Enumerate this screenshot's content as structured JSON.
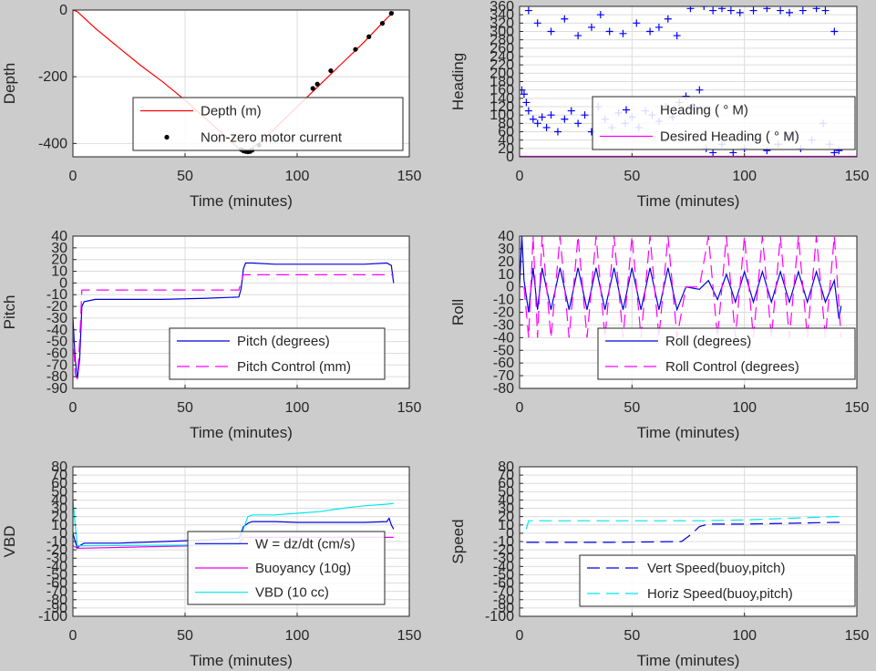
{
  "chart_data": [
    {
      "type": "line",
      "ylabel": "Depth",
      "xlabel": "Time (minutes)",
      "xlim": [
        0,
        150
      ],
      "ylim": [
        -440,
        0
      ],
      "xticks": [
        0,
        50,
        100,
        150
      ],
      "yticks": [
        0,
        -200,
        -400
      ],
      "series": [
        {
          "name": "Depth (m)",
          "color": "#ff0000",
          "style": "solid",
          "x": [
            0,
            2,
            10,
            20,
            30,
            40,
            50,
            60,
            70,
            74,
            78,
            80,
            85,
            90,
            100,
            110,
            120,
            130,
            140,
            143
          ],
          "y": [
            0,
            -5,
            -55,
            -110,
            -165,
            -215,
            -270,
            -330,
            -390,
            -415,
            -420,
            -412,
            -390,
            -355,
            -290,
            -225,
            -160,
            -95,
            -25,
            -5
          ]
        },
        {
          "name": "Non-zero motor current",
          "color": "#000000",
          "style": "dots",
          "x": [
            75,
            76,
            77,
            78,
            79,
            80,
            83,
            107,
            109,
            115,
            126,
            132,
            138,
            142
          ],
          "y": [
            -418,
            -422,
            -424,
            -425,
            -424,
            -420,
            -405,
            -235,
            -222,
            -182,
            -118,
            -80,
            -40,
            -10
          ]
        }
      ],
      "legend_location": "lower-right"
    },
    {
      "type": "scatter",
      "ylabel": "Heading",
      "xlabel": "Time (minutes)",
      "xlim": [
        0,
        150
      ],
      "ylim": [
        0,
        360
      ],
      "xticks": [
        0,
        50,
        100,
        150
      ],
      "yticks": [
        0,
        20,
        40,
        60,
        80,
        100,
        120,
        140,
        160,
        180,
        200,
        220,
        240,
        260,
        280,
        300,
        320,
        340,
        360
      ],
      "series": [
        {
          "name": "Heading (  ° M)",
          "color": "#0000ff",
          "style": "plus",
          "x": [
            1,
            2,
            3,
            4,
            6,
            8,
            10,
            12,
            14,
            17,
            20,
            23,
            26,
            29,
            32,
            35,
            38,
            41,
            44,
            47,
            50,
            53,
            56,
            59,
            62,
            65,
            68,
            71,
            74,
            77,
            80,
            83,
            86,
            90,
            95,
            100,
            105,
            110,
            115,
            120,
            125,
            130,
            135,
            138,
            140,
            142,
            4,
            8,
            14,
            20,
            26,
            32,
            36,
            40,
            46,
            52,
            58,
            62,
            66,
            70,
            76,
            82,
            86,
            90,
            94,
            98,
            104,
            110,
            116,
            120,
            126,
            132,
            136,
            140
          ],
          "y": [
            160,
            150,
            130,
            110,
            90,
            80,
            95,
            70,
            100,
            60,
            90,
            110,
            80,
            100,
            60,
            120,
            90,
            70,
            105,
            80,
            95,
            70,
            110,
            100,
            85,
            120,
            95,
            130,
            145,
            120,
            160,
            20,
            10,
            30,
            10,
            20,
            40,
            15,
            30,
            50,
            20,
            40,
            80,
            30,
            10,
            15,
            350,
            320,
            300,
            330,
            290,
            310,
            340,
            300,
            295,
            320,
            300,
            310,
            330,
            290,
            355,
            360,
            350,
            355,
            350,
            345,
            350,
            355,
            350,
            345,
            350,
            355,
            350,
            300
          ]
        },
        {
          "name": "Desired Heading (  ° M)",
          "color": "#ff00ff",
          "style": "solid",
          "x": [
            0,
            150
          ],
          "y": [
            1,
            1
          ]
        }
      ],
      "legend_location": "lower-right"
    },
    {
      "type": "line",
      "ylabel": "Pitch",
      "xlabel": "Time (minutes)",
      "xlim": [
        0,
        150
      ],
      "ylim": [
        -90,
        40
      ],
      "xticks": [
        0,
        50,
        100,
        150
      ],
      "yticks": [
        -90,
        -80,
        -70,
        -60,
        -50,
        -40,
        -30,
        -20,
        -10,
        0,
        10,
        20,
        30,
        40
      ],
      "series": [
        {
          "name": "Pitch (degrees)",
          "color": "#0000dd",
          "style": "solid",
          "x": [
            0,
            1,
            2,
            3,
            4,
            5,
            10,
            20,
            40,
            60,
            74,
            75,
            76,
            77,
            80,
            90,
            100,
            110,
            120,
            130,
            140,
            142,
            143
          ],
          "y": [
            -30,
            -65,
            -82,
            -65,
            -20,
            -16,
            -14,
            -14,
            -14,
            -13,
            -12,
            -5,
            12,
            17,
            17,
            16,
            16,
            16,
            16,
            16,
            17,
            15,
            0
          ]
        },
        {
          "name": "Pitch Control (mm)",
          "color": "#ff00ff",
          "style": "dashed",
          "x": [
            0,
            1,
            2,
            3,
            4,
            74,
            76,
            80,
            143
          ],
          "y": [
            -40,
            -78,
            -82,
            -50,
            -6,
            -6,
            7,
            7,
            7
          ]
        }
      ],
      "legend_location": "lower-right"
    },
    {
      "type": "line",
      "ylabel": "Roll",
      "xlabel": "Time (minutes)",
      "xlim": [
        0,
        150
      ],
      "ylim": [
        -80,
        40
      ],
      "xticks": [
        0,
        50,
        100,
        150
      ],
      "yticks": [
        -80,
        -70,
        -60,
        -50,
        -40,
        -30,
        -20,
        -10,
        0,
        10,
        20,
        30,
        40
      ],
      "series": [
        {
          "name": "Roll (degrees)",
          "color": "#0000dd",
          "style": "solid",
          "x": [
            0,
            1,
            2,
            4,
            6,
            8,
            10,
            14,
            18,
            22,
            26,
            30,
            34,
            38,
            42,
            46,
            50,
            54,
            58,
            62,
            66,
            70,
            74,
            80,
            84,
            88,
            92,
            96,
            100,
            104,
            108,
            112,
            116,
            120,
            124,
            128,
            132,
            136,
            140,
            142,
            143
          ],
          "y": [
            0,
            40,
            5,
            -20,
            15,
            -18,
            15,
            -18,
            15,
            -18,
            15,
            -18,
            15,
            -18,
            15,
            -18,
            15,
            -18,
            15,
            -18,
            15,
            -18,
            0,
            -2,
            5,
            -10,
            10,
            -12,
            12,
            -12,
            12,
            -12,
            12,
            -12,
            12,
            -12,
            12,
            -12,
            5,
            -25,
            -15
          ]
        },
        {
          "name": "Roll Control (degrees)",
          "color": "#ff00ff",
          "style": "dashed",
          "x": [
            2,
            4,
            6,
            8,
            10,
            14,
            18,
            22,
            26,
            30,
            34,
            38,
            42,
            46,
            50,
            54,
            58,
            62,
            66,
            70,
            74,
            80,
            84,
            88,
            92,
            96,
            100,
            104,
            108,
            112,
            116,
            120,
            124,
            128,
            132,
            136,
            140,
            143
          ],
          "y": [
            0,
            -40,
            40,
            -40,
            40,
            -40,
            40,
            -40,
            40,
            -40,
            40,
            -40,
            40,
            -40,
            40,
            -40,
            40,
            -40,
            40,
            -40,
            0,
            0,
            40,
            -40,
            40,
            -40,
            40,
            -40,
            40,
            -40,
            40,
            -40,
            40,
            -40,
            40,
            -40,
            40,
            -40
          ]
        }
      ],
      "legend_location": "lower-right"
    },
    {
      "type": "line",
      "ylabel": "VBD",
      "xlabel": "Time (minutes)",
      "xlim": [
        0,
        150
      ],
      "ylim": [
        -100,
        80
      ],
      "xticks": [
        0,
        50,
        100,
        150
      ],
      "yticks": [
        -100,
        -90,
        -80,
        -70,
        -60,
        -50,
        -40,
        -30,
        -20,
        -10,
        0,
        10,
        20,
        30,
        40,
        50,
        60,
        70,
        80
      ],
      "series": [
        {
          "name": "W = dz/dt (cm/s)",
          "color": "#0000dd",
          "style": "solid",
          "x": [
            0,
            1,
            2,
            3,
            5,
            10,
            20,
            40,
            60,
            74,
            75,
            76,
            78,
            80,
            90,
            100,
            110,
            120,
            130,
            140,
            141,
            142,
            143
          ],
          "y": [
            0,
            -10,
            -18,
            -15,
            -12,
            -12,
            -12,
            -10,
            -8,
            -6,
            0,
            8,
            12,
            14,
            14,
            13,
            13,
            13,
            13,
            14,
            18,
            10,
            5
          ]
        },
        {
          "name": "Buoyancy (10g)",
          "color": "#ee00ee",
          "style": "solid",
          "x": [
            0,
            2,
            4,
            74,
            75,
            76,
            80,
            143
          ],
          "y": [
            -15,
            -18,
            -18,
            -14,
            -10,
            -5,
            -5,
            -5
          ]
        },
        {
          "name": "VBD (10 cc)",
          "color": "#00e5ee",
          "style": "solid",
          "x": [
            0,
            1,
            2,
            4,
            74,
            76,
            78,
            80,
            90,
            100,
            110,
            120,
            130,
            140,
            143
          ],
          "y": [
            40,
            10,
            -15,
            -15,
            -14,
            5,
            20,
            22,
            22,
            24,
            26,
            30,
            33,
            35,
            36
          ]
        }
      ],
      "legend_location": "lower-right"
    },
    {
      "type": "line",
      "ylabel": "Speed",
      "xlabel": "Time (minutes)",
      "xlim": [
        0,
        150
      ],
      "ylim": [
        -100,
        80
      ],
      "xticks": [
        0,
        50,
        100,
        150
      ],
      "yticks": [
        -100,
        -90,
        -80,
        -70,
        -60,
        -50,
        -40,
        -30,
        -20,
        -10,
        0,
        10,
        20,
        30,
        40,
        50,
        60,
        70,
        80
      ],
      "series": [
        {
          "name": "Vert Speed(buoy,pitch)",
          "color": "#0000dd",
          "style": "dashed",
          "x": [
            3,
            10,
            40,
            72,
            76,
            80,
            84,
            100,
            120,
            140,
            143
          ],
          "y": [
            -11,
            -11,
            -11,
            -10,
            -2,
            8,
            11,
            11,
            12,
            13,
            13
          ]
        },
        {
          "name": "Horiz Speed(buoy,pitch)",
          "color": "#00e5ee",
          "style": "dashed",
          "x": [
            3,
            4,
            10,
            40,
            72,
            80,
            100,
            120,
            140,
            143
          ],
          "y": [
            5,
            15,
            15,
            15,
            15,
            15,
            16,
            18,
            20,
            20
          ]
        }
      ],
      "legend_location": "lower-right"
    }
  ]
}
